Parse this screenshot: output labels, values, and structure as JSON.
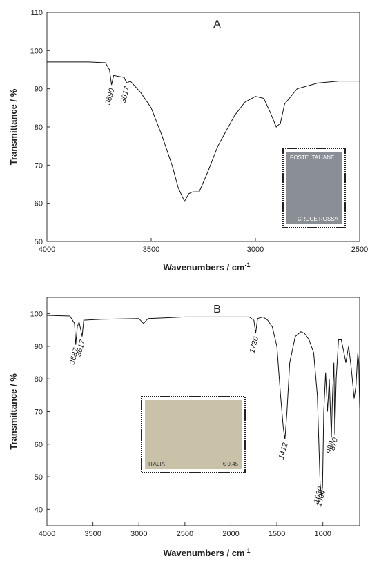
{
  "chart_data": [
    {
      "type": "line",
      "title": "A",
      "x_label": "Wavenumbers / cm",
      "x_label_sup": "-1",
      "y_label": "Transmittance / %",
      "xlim": [
        4000,
        2500
      ],
      "xticks": [
        4000,
        3500,
        3000,
        2500
      ],
      "ylim": [
        50,
        110
      ],
      "yticks": [
        50,
        60,
        70,
        80,
        90,
        100,
        110
      ],
      "color": "#111111",
      "x": [
        4000,
        3800,
        3720,
        3700,
        3690,
        3680,
        3650,
        3630,
        3617,
        3600,
        3550,
        3500,
        3450,
        3400,
        3370,
        3340,
        3320,
        3300,
        3270,
        3230,
        3180,
        3100,
        3050,
        3000,
        2960,
        2930,
        2900,
        2880,
        2860,
        2800,
        2700,
        2600,
        2500
      ],
      "values": [
        97,
        97,
        96.8,
        95,
        91,
        93.5,
        93.2,
        93,
        91.5,
        92,
        89,
        85,
        78,
        70,
        64,
        60.5,
        62.5,
        63,
        63,
        68,
        75,
        83,
        86.5,
        88,
        87.5,
        84,
        80,
        81,
        86,
        90,
        91.5,
        92,
        92
      ],
      "annotations": [
        "3690",
        "3617"
      ],
      "inset": {
        "texts": [
          "POSTE ITALIANE",
          "CROCE ROSSA"
        ]
      }
    },
    {
      "type": "line",
      "title": "B",
      "x_label": "Wavenumbers / cm",
      "x_label_sup": "-1",
      "y_label": "Transmittance / %",
      "xlim": [
        4000,
        600
      ],
      "xticks": [
        4000,
        3500,
        3000,
        2500,
        2000,
        1500,
        1000
      ],
      "ylim": [
        35,
        105
      ],
      "yticks": [
        40,
        50,
        60,
        70,
        80,
        90,
        100
      ],
      "color": "#111111",
      "x": [
        4000,
        3750,
        3700,
        3687,
        3670,
        3650,
        3617,
        3600,
        3400,
        3000,
        2950,
        2900,
        2500,
        2000,
        1800,
        1750,
        1730,
        1710,
        1650,
        1600,
        1550,
        1500,
        1460,
        1430,
        1412,
        1390,
        1360,
        1300,
        1240,
        1200,
        1150,
        1100,
        1060,
        1030,
        1015,
        1004,
        990,
        970,
        950,
        930,
        908,
        895,
        880,
        870,
        855,
        830,
        800,
        770,
        750,
        720,
        690,
        660,
        640,
        620,
        610,
        600
      ],
      "values": [
        99.5,
        99.3,
        97,
        90.5,
        96,
        97.5,
        93,
        98,
        98.3,
        98.5,
        97,
        98.5,
        99,
        99,
        99,
        98,
        94,
        98.5,
        99,
        98,
        96,
        90,
        75,
        65,
        61.5,
        70,
        85,
        93,
        94.5,
        94,
        92,
        88,
        75,
        48,
        44,
        47,
        70,
        82,
        70,
        80,
        62,
        75,
        85,
        63,
        80,
        92,
        92,
        88,
        85,
        90,
        83,
        74,
        78,
        88,
        85,
        71
      ],
      "annotations": [
        "3687",
        "3617",
        "1730",
        "1412",
        "1030",
        "1004",
        "908",
        "870"
      ],
      "inset": {
        "texts": [
          "ITALIA",
          "€ 0,45"
        ]
      }
    }
  ]
}
